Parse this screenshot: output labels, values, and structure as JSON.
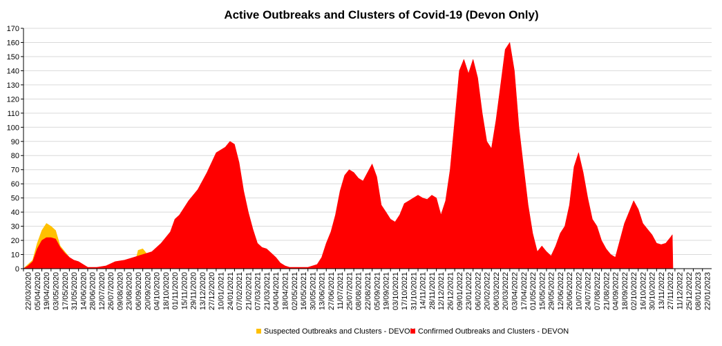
{
  "chart_data": {
    "type": "area",
    "title": "Active Outbreaks and Clusters of Covid-19 (Devon Only)",
    "xlabel": "",
    "ylabel": "",
    "ylim": [
      0,
      170
    ],
    "y_ticks": [
      0,
      10,
      20,
      30,
      40,
      50,
      60,
      70,
      80,
      90,
      100,
      110,
      120,
      130,
      140,
      150,
      160,
      170
    ],
    "x_tick_labels": [
      "22/03/2020",
      "05/04/2020",
      "19/04/2020",
      "03/05/2020",
      "17/05/2020",
      "31/05/2020",
      "14/06/2020",
      "28/06/2020",
      "12/07/2020",
      "26/07/2020",
      "09/08/2020",
      "23/08/2020",
      "06/09/2020",
      "20/09/2020",
      "04/10/2020",
      "18/10/2020",
      "01/11/2020",
      "15/11/2020",
      "29/11/2020",
      "13/12/2020",
      "27/12/2020",
      "10/01/2021",
      "24/01/2021",
      "07/02/2021",
      "21/02/2021",
      "07/03/2021",
      "21/03/2021",
      "04/04/2021",
      "18/04/2021",
      "02/05/2021",
      "16/05/2021",
      "30/05/2021",
      "13/06/2021",
      "27/06/2021",
      "11/07/2021",
      "25/07/2021",
      "08/08/2021",
      "22/08/2021",
      "05/09/2021",
      "19/09/2021",
      "03/10/2021",
      "17/10/2021",
      "31/10/2021",
      "14/11/2021",
      "28/11/2021",
      "12/12/2021",
      "26/12/2021",
      "09/01/2022",
      "23/01/2022",
      "06/02/2022",
      "20/02/2022",
      "06/03/2022",
      "20/03/2022",
      "03/04/2022",
      "17/04/2022",
      "01/05/2022",
      "15/05/2022",
      "29/05/2022",
      "12/06/2022",
      "26/06/2022",
      "10/07/2022",
      "24/07/2022",
      "07/08/2022",
      "21/08/2022",
      "04/09/2022",
      "18/09/2022",
      "02/10/2022",
      "16/10/2022",
      "30/10/2022",
      "13/11/2022",
      "27/11/2022",
      "11/12/2022",
      "25/12/2022",
      "08/01/2023",
      "22/01/2023"
    ],
    "grid": true,
    "legend_position": "bottom",
    "series": [
      {
        "name": "Suspected Outbreaks and Clusters - DEVON",
        "color": "#FFC000",
        "points": [
          [
            "22/03/2020",
            0
          ],
          [
            "05/04/2020",
            6
          ],
          [
            "12/04/2020",
            18
          ],
          [
            "19/04/2020",
            27
          ],
          [
            "26/04/2020",
            32
          ],
          [
            "03/05/2020",
            30
          ],
          [
            "10/05/2020",
            27
          ],
          [
            "17/05/2020",
            16
          ],
          [
            "24/05/2020",
            12
          ],
          [
            "31/05/2020",
            8
          ],
          [
            "06/06/2020",
            0
          ],
          [
            "06/09/2020",
            0
          ],
          [
            "13/09/2020",
            13
          ],
          [
            "20/09/2020",
            14
          ],
          [
            "27/09/2020",
            10
          ],
          [
            "04/10/2020",
            0
          ]
        ]
      },
      {
        "name": "Confirmed Outbreaks and Clusters - DEVON",
        "color": "#FF0000",
        "points": [
          [
            "22/03/2020",
            0
          ],
          [
            "29/03/2020",
            2
          ],
          [
            "05/04/2020",
            5
          ],
          [
            "12/04/2020",
            14
          ],
          [
            "19/04/2020",
            20
          ],
          [
            "26/04/2020",
            22
          ],
          [
            "03/05/2020",
            22
          ],
          [
            "10/05/2020",
            21
          ],
          [
            "17/05/2020",
            15
          ],
          [
            "24/05/2020",
            11
          ],
          [
            "31/05/2020",
            8
          ],
          [
            "07/06/2020",
            6
          ],
          [
            "14/06/2020",
            5
          ],
          [
            "21/06/2020",
            3
          ],
          [
            "28/06/2020",
            1
          ],
          [
            "12/07/2020",
            1
          ],
          [
            "26/07/2020",
            2
          ],
          [
            "09/08/2020",
            5
          ],
          [
            "23/08/2020",
            6
          ],
          [
            "06/09/2020",
            8
          ],
          [
            "20/09/2020",
            10
          ],
          [
            "04/10/2020",
            12
          ],
          [
            "18/10/2020",
            18
          ],
          [
            "01/11/2020",
            26
          ],
          [
            "08/11/2020",
            35
          ],
          [
            "15/11/2020",
            38
          ],
          [
            "29/11/2020",
            48
          ],
          [
            "13/12/2020",
            56
          ],
          [
            "27/12/2020",
            68
          ],
          [
            "10/01/2021",
            82
          ],
          [
            "24/01/2021",
            86
          ],
          [
            "31/01/2021",
            90
          ],
          [
            "07/02/2021",
            88
          ],
          [
            "14/02/2021",
            75
          ],
          [
            "21/02/2021",
            55
          ],
          [
            "28/02/2021",
            40
          ],
          [
            "07/03/2021",
            28
          ],
          [
            "14/03/2021",
            18
          ],
          [
            "21/03/2021",
            15
          ],
          [
            "28/03/2021",
            14
          ],
          [
            "04/04/2021",
            11
          ],
          [
            "11/04/2021",
            8
          ],
          [
            "18/04/2021",
            4
          ],
          [
            "25/04/2021",
            2
          ],
          [
            "02/05/2021",
            1
          ],
          [
            "30/05/2021",
            1
          ],
          [
            "13/06/2021",
            3
          ],
          [
            "20/06/2021",
            8
          ],
          [
            "27/06/2021",
            18
          ],
          [
            "04/07/2021",
            26
          ],
          [
            "11/07/2021",
            38
          ],
          [
            "18/07/2021",
            55
          ],
          [
            "25/07/2021",
            66
          ],
          [
            "01/08/2021",
            70
          ],
          [
            "08/08/2021",
            68
          ],
          [
            "15/08/2021",
            64
          ],
          [
            "22/08/2021",
            62
          ],
          [
            "29/08/2021",
            68
          ],
          [
            "05/09/2021",
            74
          ],
          [
            "12/09/2021",
            65
          ],
          [
            "19/09/2021",
            45
          ],
          [
            "26/09/2021",
            40
          ],
          [
            "03/10/2021",
            35
          ],
          [
            "10/10/2021",
            33
          ],
          [
            "17/10/2021",
            38
          ],
          [
            "24/10/2021",
            46
          ],
          [
            "31/10/2021",
            48
          ],
          [
            "07/11/2021",
            50
          ],
          [
            "14/11/2021",
            52
          ],
          [
            "21/11/2021",
            50
          ],
          [
            "28/11/2021",
            49
          ],
          [
            "05/12/2021",
            52
          ],
          [
            "12/12/2021",
            50
          ],
          [
            "19/12/2021",
            38
          ],
          [
            "26/12/2021",
            48
          ],
          [
            "02/01/2022",
            70
          ],
          [
            "09/01/2022",
            105
          ],
          [
            "16/01/2022",
            140
          ],
          [
            "23/01/2022",
            148
          ],
          [
            "30/01/2022",
            138
          ],
          [
            "06/02/2022",
            148
          ],
          [
            "13/02/2022",
            135
          ],
          [
            "20/02/2022",
            110
          ],
          [
            "27/02/2022",
            90
          ],
          [
            "06/03/2022",
            85
          ],
          [
            "13/03/2022",
            105
          ],
          [
            "20/03/2022",
            130
          ],
          [
            "27/03/2022",
            155
          ],
          [
            "03/04/2022",
            160
          ],
          [
            "10/04/2022",
            140
          ],
          [
            "17/04/2022",
            100
          ],
          [
            "24/04/2022",
            72
          ],
          [
            "01/05/2022",
            45
          ],
          [
            "08/05/2022",
            25
          ],
          [
            "15/05/2022",
            12
          ],
          [
            "22/05/2022",
            16
          ],
          [
            "29/05/2022",
            12
          ],
          [
            "05/06/2022",
            9
          ],
          [
            "12/06/2022",
            16
          ],
          [
            "19/06/2022",
            25
          ],
          [
            "26/06/2022",
            30
          ],
          [
            "03/07/2022",
            45
          ],
          [
            "10/07/2022",
            72
          ],
          [
            "17/07/2022",
            82
          ],
          [
            "24/07/2022",
            68
          ],
          [
            "31/07/2022",
            50
          ],
          [
            "07/08/2022",
            35
          ],
          [
            "14/08/2022",
            30
          ],
          [
            "21/08/2022",
            20
          ],
          [
            "28/08/2022",
            14
          ],
          [
            "04/09/2022",
            10
          ],
          [
            "11/09/2022",
            8
          ],
          [
            "18/09/2022",
            20
          ],
          [
            "25/09/2022",
            32
          ],
          [
            "02/10/2022",
            40
          ],
          [
            "09/10/2022",
            48
          ],
          [
            "16/10/2022",
            42
          ],
          [
            "23/10/2022",
            32
          ],
          [
            "30/10/2022",
            28
          ],
          [
            "06/11/2022",
            24
          ],
          [
            "13/11/2022",
            18
          ],
          [
            "20/11/2022",
            17
          ],
          [
            "27/11/2022",
            18
          ],
          [
            "04/12/2022",
            22
          ],
          [
            "07/12/2022",
            24
          ],
          [
            "08/12/2022",
            0
          ]
        ]
      }
    ]
  }
}
